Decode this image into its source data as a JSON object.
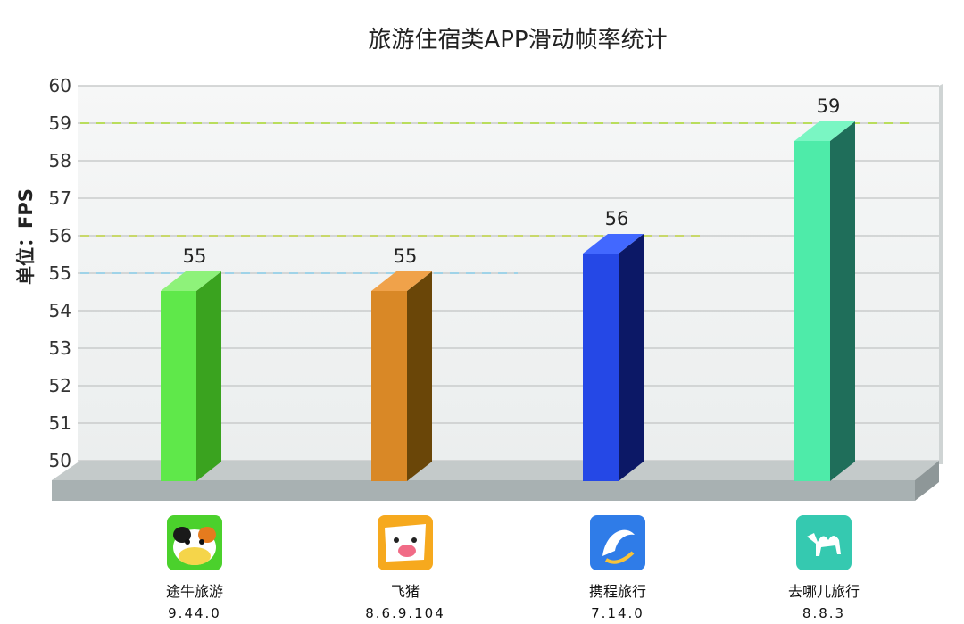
{
  "chart_data": {
    "type": "bar",
    "title": "旅游住宿类APP滑动帧率统计",
    "ylabel": "单位：FPS",
    "ylim": [
      50,
      60
    ],
    "yticks": [
      "50",
      "51",
      "52",
      "53",
      "54",
      "55",
      "56",
      "57",
      "58",
      "59",
      "60"
    ],
    "categories": [
      {
        "name": "途牛旅游",
        "version": "9.44.0",
        "icon": "tuniu-cow-icon"
      },
      {
        "name": "飞猪",
        "version": "8.6.9.104",
        "icon": "fliggy-pig-icon"
      },
      {
        "name": "携程旅行",
        "version": "7.14.0",
        "icon": "ctrip-dolphin-icon"
      },
      {
        "name": "去哪儿旅行",
        "version": "8.8.3",
        "icon": "qunar-camel-icon"
      }
    ],
    "values": [
      55,
      55,
      56,
      59
    ],
    "value_labels": [
      "55",
      "55",
      "56",
      "59"
    ],
    "bar_colors": [
      {
        "front": "#5fe84a",
        "side": "#3aa31f",
        "top": "#8ef27a"
      },
      {
        "front": "#d98826",
        "side": "#6a4608",
        "top": "#f0a24a"
      },
      {
        "front": "#2548e6",
        "side": "#0c1866",
        "top": "#4268ff"
      },
      {
        "front": "#4eeba9",
        "side": "#1f6e5a",
        "top": "#7af6c3"
      }
    ],
    "reference_lines": [
      {
        "value": 55,
        "color": "#9fd3e8"
      },
      {
        "value": 56,
        "color": "#c8d86a"
      },
      {
        "value": 59,
        "color": "#b9dd5c"
      }
    ],
    "grid": true,
    "legend": "none"
  }
}
